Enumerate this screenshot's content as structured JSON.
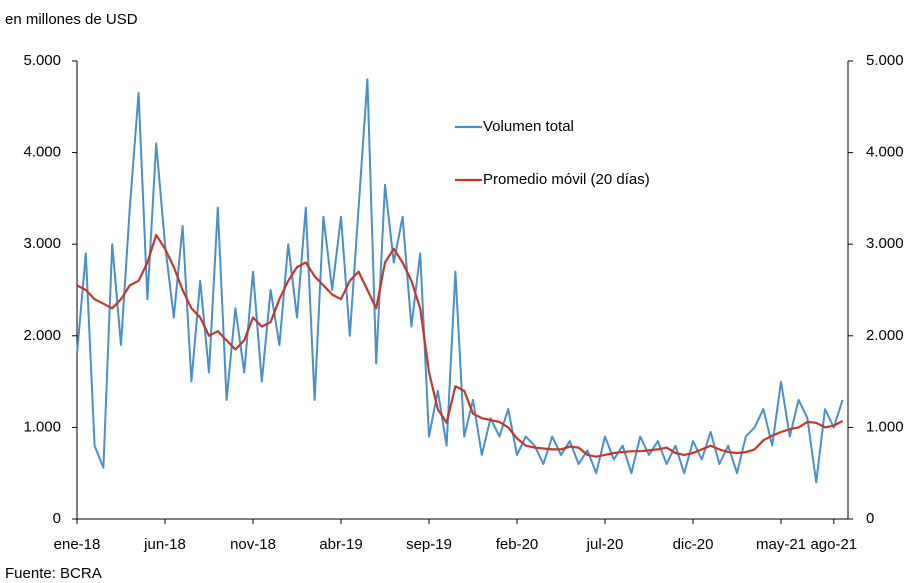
{
  "chart_data": {
    "type": "line",
    "y_label": "en millones de USD",
    "source": "Fuente: BCRA",
    "categories": [
      "ene-18",
      null,
      null,
      null,
      null,
      null,
      null,
      null,
      null,
      null,
      "jun-18",
      null,
      null,
      null,
      null,
      null,
      null,
      null,
      null,
      null,
      "nov-18",
      null,
      null,
      null,
      null,
      null,
      null,
      null,
      null,
      null,
      "abr-19",
      null,
      null,
      null,
      null,
      null,
      null,
      null,
      null,
      null,
      "sep-19",
      null,
      null,
      null,
      null,
      null,
      null,
      null,
      null,
      null,
      "feb-20",
      null,
      null,
      null,
      null,
      null,
      null,
      null,
      null,
      null,
      "jul-20",
      null,
      null,
      null,
      null,
      null,
      null,
      null,
      null,
      null,
      "dic-20",
      null,
      null,
      null,
      null,
      null,
      null,
      null,
      null,
      null,
      "may-21",
      null,
      null,
      null,
      null,
      null,
      "ago-21",
      null
    ],
    "series": [
      {
        "name": "Volumen total",
        "color": "#4a90c8",
        "values": [
          1800,
          2900,
          800,
          560,
          3000,
          1900,
          3400,
          4650,
          2400,
          4100,
          3000,
          2200,
          3200,
          1500,
          2600,
          1600,
          3400,
          1300,
          2300,
          1600,
          2700,
          1500,
          2500,
          1900,
          3000,
          2200,
          3400,
          1300,
          3300,
          2500,
          3300,
          2000,
          3400,
          4800,
          1700,
          3650,
          2800,
          3300,
          2100,
          2900,
          900,
          1400,
          800,
          2700,
          900,
          1300,
          700,
          1100,
          900,
          1200,
          700,
          900,
          800,
          600,
          900,
          700,
          850,
          600,
          750,
          500,
          900,
          650,
          800,
          500,
          900,
          700,
          850,
          600,
          800,
          500,
          850,
          650,
          950,
          600,
          800,
          500,
          900,
          1000,
          1200,
          800,
          1500,
          900,
          1300,
          1100,
          400,
          1200,
          1000,
          1300
        ]
      },
      {
        "name": "Promedio móvil (20 días)",
        "color": "#c0392b",
        "values": [
          2550,
          2500,
          2400,
          2350,
          2300,
          2400,
          2550,
          2600,
          2800,
          3100,
          2950,
          2750,
          2500,
          2300,
          2200,
          2000,
          2050,
          1950,
          1850,
          1950,
          2200,
          2100,
          2150,
          2400,
          2600,
          2750,
          2800,
          2650,
          2550,
          2450,
          2400,
          2600,
          2700,
          2500,
          2300,
          2800,
          2950,
          2800,
          2600,
          2300,
          1600,
          1200,
          1050,
          1450,
          1400,
          1150,
          1100,
          1080,
          1060,
          1000,
          880,
          800,
          780,
          770,
          760,
          760,
          790,
          780,
          700,
          680,
          700,
          720,
          730,
          740,
          740,
          750,
          760,
          780,
          720,
          700,
          720,
          760,
          800,
          760,
          730,
          720,
          730,
          760,
          860,
          910,
          950,
          980,
          1000,
          1060,
          1050,
          1000,
          1020,
          1070
        ]
      }
    ],
    "ylim": [
      0,
      5000
    ],
    "yticks": [
      0,
      {
        "value": 1000,
        "label": "1.000"
      },
      {
        "value": 2000,
        "label": "2.000"
      },
      {
        "value": 3000,
        "label": "3.000"
      },
      {
        "value": 4000,
        "label": "4.000"
      },
      {
        "value": 5000,
        "label": "5.000"
      }
    ],
    "y2lim": [
      0,
      5000
    ],
    "y2ticks": [
      0,
      {
        "value": 1000,
        "label": "1.000"
      },
      {
        "value": 2000,
        "label": "2.000"
      },
      {
        "value": 3000,
        "label": "3.000"
      },
      {
        "value": 4000,
        "label": "4.000"
      },
      {
        "value": 5000,
        "label": "5.000"
      }
    ],
    "grid": false
  }
}
